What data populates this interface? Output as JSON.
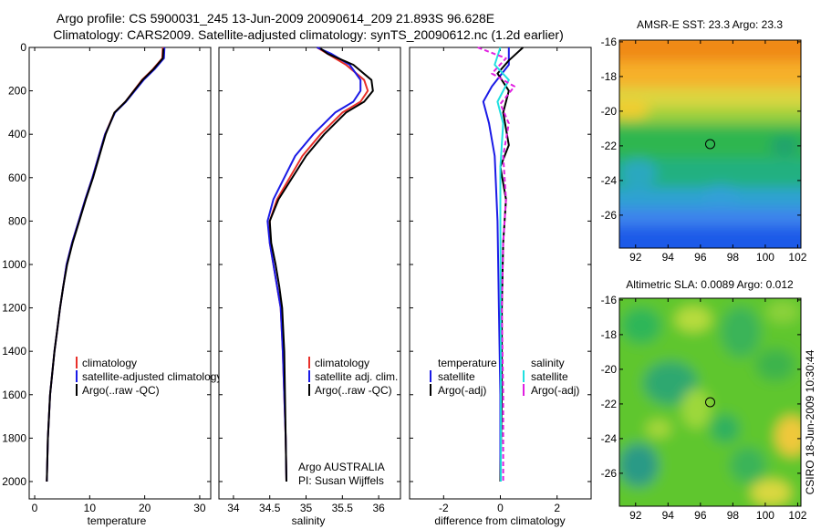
{
  "figure": {
    "title_line1": "Argo profile: CS 5900031_245 13-Jun-2009 20090614_209 21.893S 96.628E",
    "title_line2": "Climatology: CARS2009. Satellite-adjusted climatology: synTS_20090612.nc (1.2d earlier)",
    "side_label": "CSIRO 18-Jun-2009 10:30:44",
    "colors": {
      "climatology": "#e8302a",
      "satellite": "#1a1ae6",
      "argo": "#000000",
      "sat_salinity": "#20e0e0",
      "argo_salinity_diff": "#e020e0"
    }
  },
  "chart_data": [
    {
      "type": "line",
      "id": "temperature-profile",
      "xlabel": "temperature",
      "xlim": [
        -1,
        32
      ],
      "xticks": [
        "0",
        "10",
        "20",
        "30"
      ],
      "ylim": [
        2080,
        0
      ],
      "yticks": [
        "0",
        "200",
        "400",
        "600",
        "800",
        "1000",
        "1200",
        "1400",
        "1600",
        "1800",
        "2000"
      ],
      "legend": [
        "climatology",
        "satellite-adjusted climatology",
        "Argo(..raw -QC)"
      ],
      "series": [
        {
          "name": "climatology",
          "x": [
            23.3,
            23.2,
            21.5,
            19.5,
            16.5,
            14.5,
            12.8,
            10.5,
            9.2,
            8.0,
            6.8,
            5.8,
            5.2,
            4.6,
            4.1,
            3.6,
            3.2,
            2.8,
            2.4,
            2.2
          ],
          "y": [
            0,
            50,
            100,
            150,
            250,
            300,
            400,
            600,
            700,
            800,
            900,
            1000,
            1100,
            1200,
            1300,
            1400,
            1500,
            1600,
            1800,
            2000
          ]
        },
        {
          "name": "satellite-adjusted climatology",
          "x": [
            23.6,
            23.5,
            21.8,
            19.8,
            16.6,
            14.6,
            12.8,
            10.5,
            9.2,
            8.0,
            6.8,
            5.8,
            5.2,
            4.6,
            4.1,
            3.6,
            3.2,
            2.8,
            2.4,
            2.2
          ],
          "y": [
            0,
            50,
            100,
            150,
            250,
            300,
            400,
            600,
            700,
            800,
            900,
            1000,
            1100,
            1200,
            1300,
            1400,
            1500,
            1600,
            1800,
            2000
          ]
        },
        {
          "name": "Argo(..raw -QC)",
          "x": [
            23.4,
            23.3,
            21.6,
            19.6,
            16.5,
            14.5,
            12.9,
            10.6,
            9.3,
            8.1,
            6.9,
            5.9,
            5.2,
            4.6,
            4.1,
            3.6,
            3.2,
            2.8,
            2.4,
            2.2
          ],
          "y": [
            5,
            50,
            100,
            150,
            250,
            300,
            400,
            600,
            700,
            800,
            900,
            1000,
            1100,
            1200,
            1300,
            1400,
            1500,
            1600,
            1800,
            2000
          ]
        }
      ]
    },
    {
      "type": "line",
      "id": "salinity-profile",
      "xlabel": "salinity",
      "xlim": [
        33.8,
        36.3
      ],
      "xticks": [
        "34",
        "34.5",
        "35",
        "35.5",
        "36"
      ],
      "ylim": [
        2080,
        0
      ],
      "legend": [
        "climatology",
        "satellite adj. clim.",
        "Argo(..raw -QC)"
      ],
      "annotations": [
        "Argo AUSTRALIA",
        "PI: Susan Wijffels"
      ],
      "series": [
        {
          "name": "climatology",
          "x": [
            35.15,
            35.3,
            35.55,
            35.8,
            35.85,
            35.75,
            35.5,
            35.2,
            34.95,
            34.6,
            34.5,
            34.5,
            34.55,
            34.6,
            34.65,
            34.68,
            34.7,
            34.72,
            34.73
          ],
          "y": [
            0,
            30,
            80,
            150,
            200,
            250,
            300,
            400,
            500,
            700,
            800,
            900,
            1000,
            1100,
            1200,
            1400,
            1600,
            1800,
            2000
          ]
        },
        {
          "name": "satellite adj. clim.",
          "x": [
            35.15,
            35.35,
            35.6,
            35.75,
            35.75,
            35.65,
            35.4,
            35.1,
            34.85,
            34.55,
            34.47,
            34.5,
            34.55,
            34.6,
            34.65,
            34.68,
            34.7,
            34.72,
            34.73
          ],
          "y": [
            0,
            30,
            80,
            150,
            200,
            250,
            300,
            400,
            500,
            700,
            800,
            900,
            1000,
            1100,
            1200,
            1400,
            1600,
            1800,
            2000
          ]
        },
        {
          "name": "Argo(..raw -QC)",
          "x": [
            35.2,
            35.3,
            35.65,
            35.9,
            35.92,
            35.8,
            35.55,
            35.25,
            35.0,
            34.62,
            34.5,
            34.52,
            34.58,
            34.63,
            34.67,
            34.7,
            34.71,
            34.72,
            34.73
          ],
          "y": [
            5,
            30,
            80,
            150,
            200,
            250,
            300,
            400,
            500,
            700,
            800,
            900,
            1000,
            1100,
            1200,
            1400,
            1600,
            1800,
            2000
          ]
        }
      ]
    },
    {
      "type": "line",
      "id": "difference-profile",
      "xlabel": "difference from climatology",
      "xlim": [
        -3.2,
        3.2
      ],
      "xticks": [
        "-2",
        "0",
        "2"
      ],
      "ylim": [
        2080,
        0
      ],
      "legend_left_title": "temperature",
      "legend_right_title": "salinity",
      "legend_left": [
        "satellite",
        "Argo(-adj)"
      ],
      "legend_right": [
        "satellite",
        "Argo(-adj)"
      ],
      "series": [
        {
          "name": "temperature satellite",
          "x": [
            0.3,
            0.3,
            -0.3,
            -0.6,
            -0.4,
            -0.2,
            -0.1,
            -0.05,
            0.0,
            0.0
          ],
          "y": [
            0,
            80,
            180,
            250,
            350,
            500,
            800,
            1200,
            1600,
            2000
          ]
        },
        {
          "name": "temperature Argo(-adj)",
          "x": [
            0.8,
            0.3,
            -0.1,
            0.3,
            0.1,
            0.3,
            0.0,
            0.2,
            0.1,
            0.05,
            0.05,
            0.0
          ],
          "y": [
            0,
            60,
            120,
            200,
            300,
            450,
            550,
            700,
            900,
            1200,
            1600,
            2000
          ]
        },
        {
          "name": "salinity satellite",
          "x": [
            0.0,
            -0.2,
            0.3,
            -0.1,
            0.1,
            0.0,
            0.0,
            0.02,
            0.02
          ],
          "y": [
            0,
            80,
            150,
            250,
            350,
            550,
            800,
            1400,
            2000
          ]
        },
        {
          "name": "salinity Argo(-adj)",
          "x": [
            -0.8,
            0.2,
            -0.3,
            0.5,
            0.0,
            0.3,
            0.1,
            0.2,
            0.1,
            0.05,
            0.1,
            0.1
          ],
          "y": [
            0,
            50,
            120,
            180,
            260,
            350,
            500,
            700,
            900,
            1200,
            1600,
            2000
          ]
        }
      ]
    },
    {
      "type": "heatmap",
      "id": "sst-map",
      "title": "AMSR-E SST: 23.3 Argo: 23.3",
      "xlim": [
        91,
        102.2
      ],
      "ylim": [
        -27.9,
        -15.9
      ],
      "xticks": [
        "92",
        "94",
        "96",
        "98",
        "100",
        "102"
      ],
      "yticks": [
        "-16",
        "-18",
        "-20",
        "-22",
        "-24",
        "-26"
      ],
      "marker": [
        96.6,
        -21.9
      ]
    },
    {
      "type": "heatmap",
      "id": "sla-map",
      "title": "Altimetric SLA: 0.0089 Argo: 0.012",
      "xlim": [
        91,
        102.2
      ],
      "ylim": [
        -27.9,
        -15.9
      ],
      "xticks": [
        "92",
        "94",
        "96",
        "98",
        "100",
        "102"
      ],
      "yticks": [
        "-16",
        "-18",
        "-20",
        "-22",
        "-24",
        "-26"
      ],
      "marker": [
        96.6,
        -21.9
      ]
    }
  ]
}
